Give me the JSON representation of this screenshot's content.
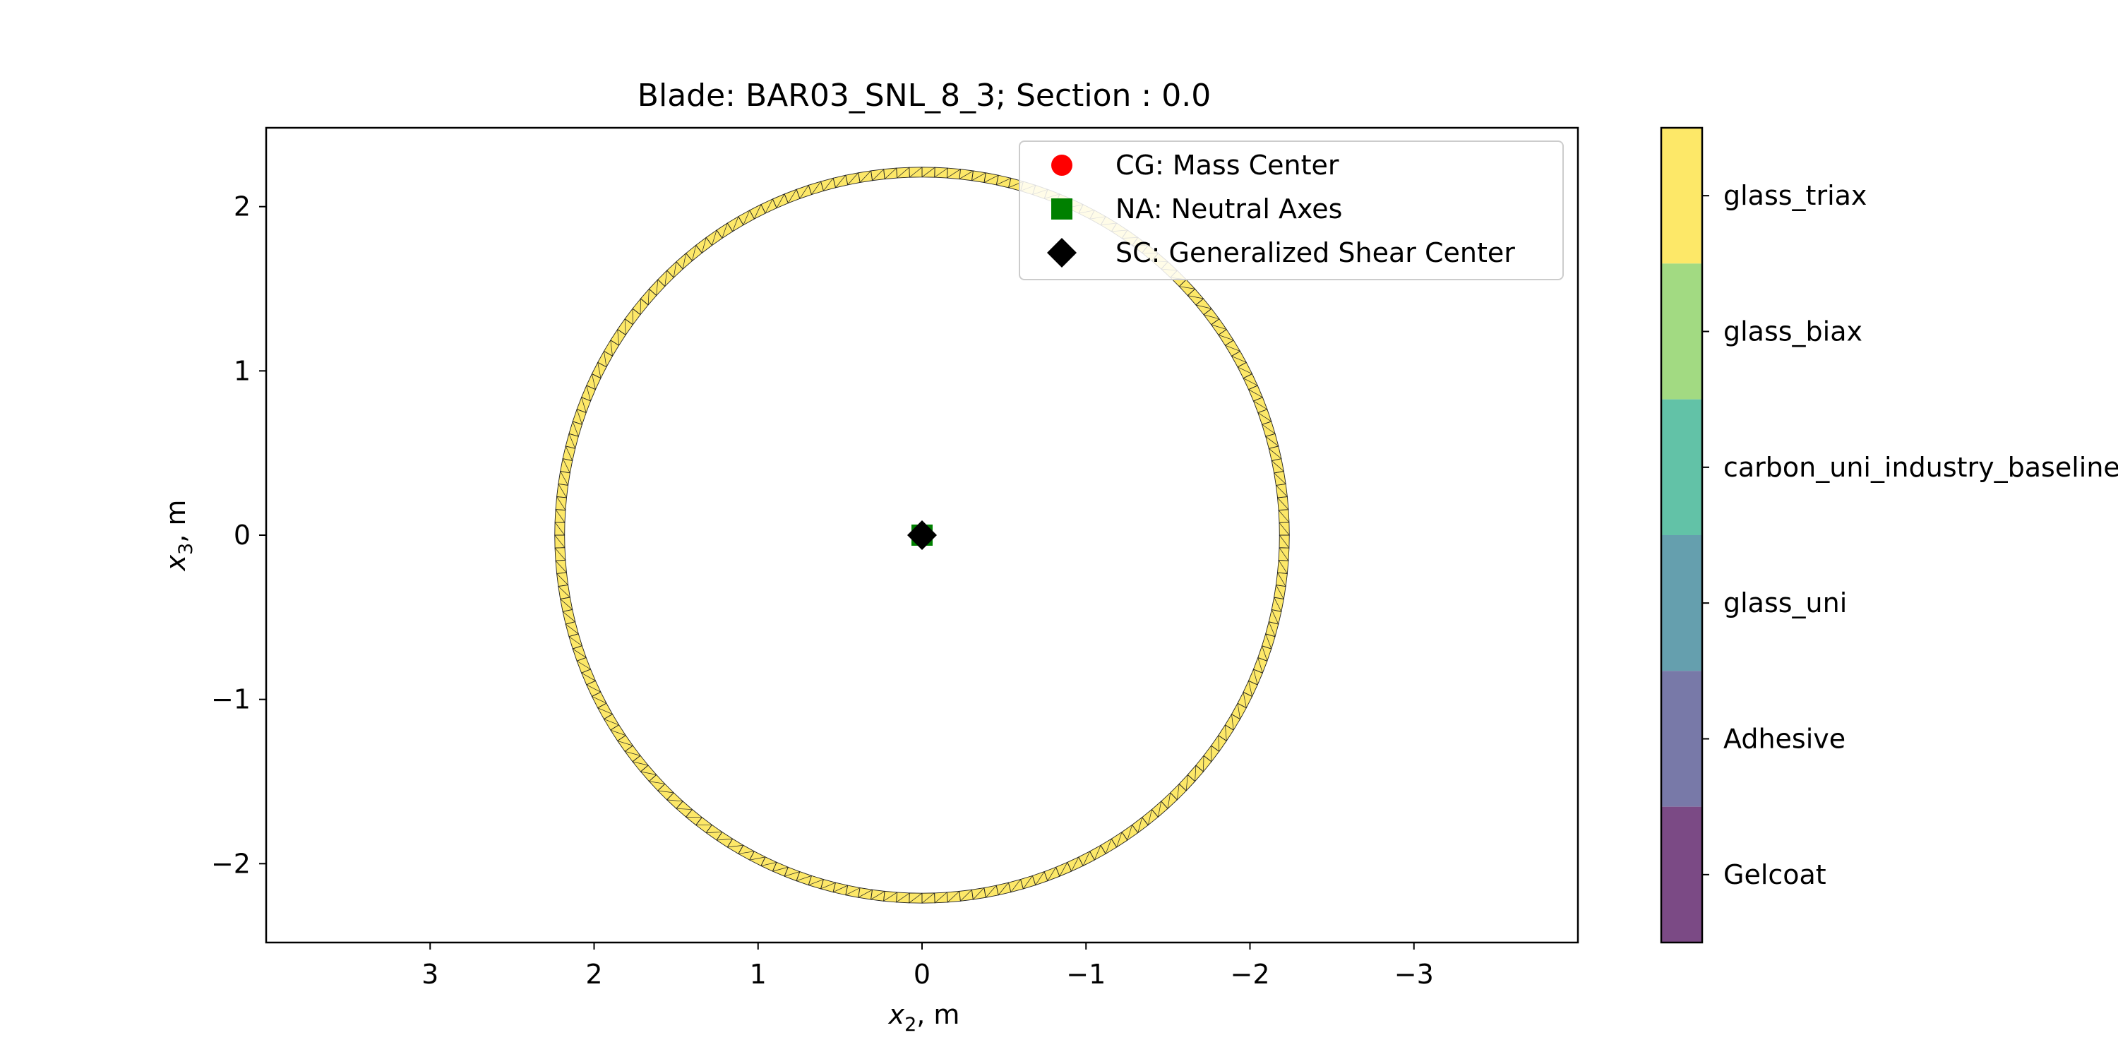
{
  "chart_data": {
    "type": "scatter",
    "title": "Blade: BAR03_SNL_8_3; Section : 0.0",
    "xlabel": {
      "main": "x",
      "sub": "2",
      "unit": ", m"
    },
    "ylabel": {
      "main": "x",
      "sub": "3",
      "unit": ", m"
    },
    "xlim": [
      4.0,
      -4.0
    ],
    "ylim": [
      -2.48,
      2.48
    ],
    "xticks": [
      {
        "value": 3,
        "label": "3"
      },
      {
        "value": 2,
        "label": "2"
      },
      {
        "value": 1,
        "label": "1"
      },
      {
        "value": 0,
        "label": "0"
      },
      {
        "value": -1,
        "label": "−1"
      },
      {
        "value": -2,
        "label": "−2"
      },
      {
        "value": -3,
        "label": "−3"
      }
    ],
    "yticks": [
      {
        "value": 2,
        "label": "2"
      },
      {
        "value": 1,
        "label": "1"
      },
      {
        "value": 0,
        "label": "0"
      },
      {
        "value": -1,
        "label": "−1"
      },
      {
        "value": -2,
        "label": "−2"
      }
    ],
    "section_ring": {
      "center": [
        0,
        0
      ],
      "outer_radius": 2.24,
      "inner_radius": 2.18,
      "material": "glass_triax",
      "element_count": 180,
      "fill_color": "#fde868",
      "edge_color": "#222222"
    },
    "points": [
      {
        "name": "CG: Mass Center",
        "x": 0.0,
        "y": 0.0,
        "marker": "circle",
        "color": "#ff0000"
      },
      {
        "name": "NA: Neutral Axes",
        "x": 0.0,
        "y": 0.0,
        "marker": "square",
        "color": "#008000"
      },
      {
        "name": "SC: Generalized Shear Center",
        "x": 0.0,
        "y": 0.0,
        "marker": "diamond",
        "color": "#000000"
      }
    ],
    "legend": {
      "position": "top-right",
      "entries": [
        {
          "label": "CG: Mass Center",
          "marker": "circle",
          "color": "#ff0000"
        },
        {
          "label": "NA: Neutral Axes",
          "marker": "square",
          "color": "#008000"
        },
        {
          "label": "SC: Generalized Shear Center",
          "marker": "diamond",
          "color": "#000000"
        }
      ]
    },
    "colorbar": {
      "categories": [
        {
          "label": "glass_triax",
          "color": "#fde868"
        },
        {
          "label": "glass_biax",
          "color": "#a2da82"
        },
        {
          "label": "carbon_uni_industry_baseline",
          "color": "#62c2a7"
        },
        {
          "label": "glass_uni",
          "color": "#659fae"
        },
        {
          "label": "Adhesive",
          "color": "#7879a8"
        },
        {
          "label": "Gelcoat",
          "color": "#7b4a85"
        }
      ]
    }
  }
}
